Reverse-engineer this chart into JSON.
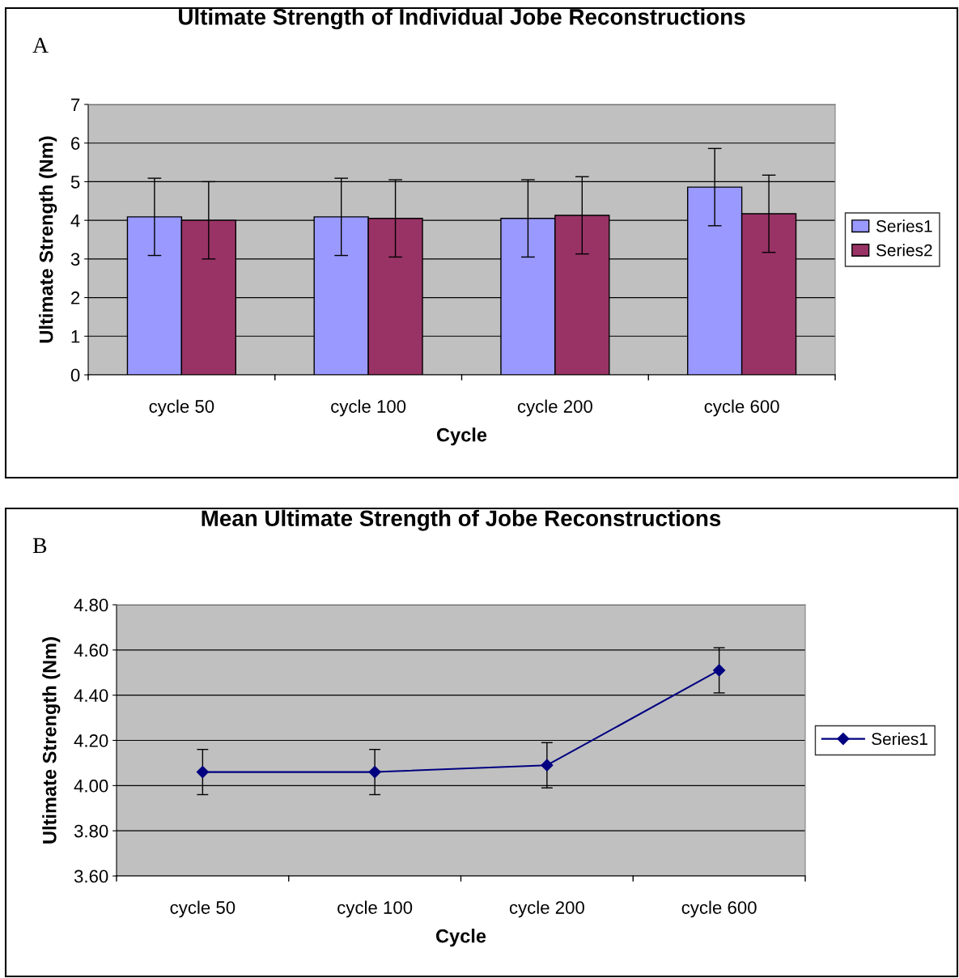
{
  "chart_data": [
    {
      "type": "bar",
      "title": "Ultimate Strength of Individual Jobe Reconstructions",
      "xlabel": "Cycle",
      "ylabel": "Ultimate Strength (Nm)",
      "annotations": [
        "A"
      ],
      "categories": [
        "cycle 50",
        "cycle 100",
        "cycle 200",
        "cycle 600"
      ],
      "series": [
        {
          "name": "Series1",
          "color": "#9999ff",
          "values": [
            4.09,
            4.09,
            4.05,
            4.86
          ],
          "errors": [
            1.0,
            1.0,
            1.0,
            1.0
          ]
        },
        {
          "name": "Series2",
          "color": "#993366",
          "values": [
            4.0,
            4.05,
            4.13,
            4.17
          ],
          "errors": [
            1.0,
            1.0,
            1.0,
            1.0
          ]
        }
      ],
      "ylim": [
        0,
        7
      ],
      "yticks": [
        0,
        1,
        2,
        3,
        4,
        5,
        6,
        7
      ],
      "grid": "y",
      "legend": "right"
    },
    {
      "type": "line",
      "title": "Mean Ultimate Strength of Jobe Reconstructions",
      "xlabel": "Cycle",
      "ylabel": "Ultimate Strength (Nm)",
      "annotations": [
        "B"
      ],
      "categories": [
        "cycle 50",
        "cycle 100",
        "cycle 200",
        "cycle 600"
      ],
      "series": [
        {
          "name": "Series1",
          "color": "#000080",
          "values": [
            4.06,
            4.06,
            4.09,
            4.51
          ],
          "errors": [
            0.1,
            0.1,
            0.1,
            0.1
          ]
        }
      ],
      "ylim": [
        3.6,
        4.8
      ],
      "yticks": [
        {
          "value": 3.6,
          "label": "3.60"
        },
        {
          "value": 3.8,
          "label": "3.80"
        },
        {
          "value": 4.0,
          "label": "4.00"
        },
        {
          "value": 4.2,
          "label": "4.20"
        },
        {
          "value": 4.4,
          "label": "4.40"
        },
        {
          "value": 4.6,
          "label": "4.60"
        },
        {
          "value": 4.8,
          "label": "4.80"
        }
      ],
      "grid": "y",
      "legend": "right",
      "marker": "diamond",
      "line_style": "solid"
    }
  ]
}
